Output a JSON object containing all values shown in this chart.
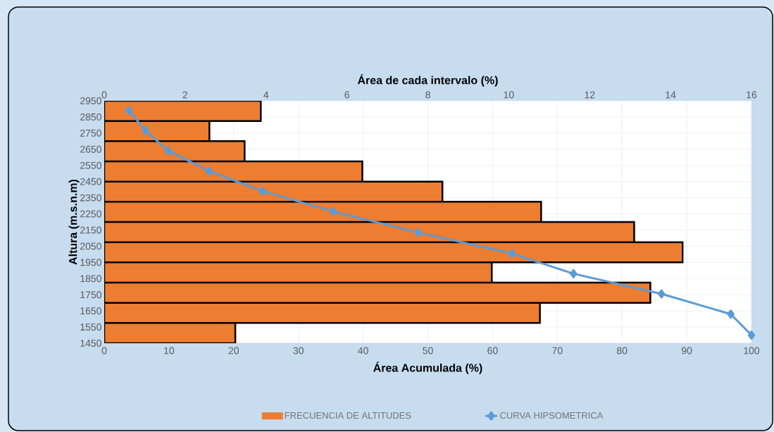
{
  "chart_data": {
    "type": "bar",
    "orientation": "horizontal",
    "xlabel": "Área Acumulada (%)",
    "x2label": "Área de cada intervalo (%)",
    "ylabel": "Altura (m.s.n.m)",
    "xlim": [
      0,
      100
    ],
    "xticks": [
      0,
      10,
      20,
      30,
      40,
      50,
      60,
      70,
      80,
      90,
      100
    ],
    "x2lim": [
      0,
      16
    ],
    "x2ticks": [
      0,
      2,
      4,
      6,
      8,
      10,
      12,
      14,
      16
    ],
    "ylim": [
      1450,
      2950
    ],
    "yticks": [
      1450,
      1550,
      1650,
      1750,
      1850,
      1950,
      2050,
      2150,
      2250,
      2350,
      2450,
      2550,
      2650,
      2750,
      2850,
      2950
    ],
    "grid": true,
    "legend": "bottom",
    "series": [
      {
        "name": "FRECUENCIA DE ALTITUDES",
        "axis": "x2",
        "color": "#ed7d31",
        "x": [
          2887.5,
          2762.5,
          2637.5,
          2512.5,
          2387.5,
          2262.5,
          2137.5,
          2012.5,
          1887.5,
          1762.5,
          1637.5,
          1512.5
        ],
        "values": [
          3.87,
          2.6,
          3.47,
          6.38,
          8.36,
          10.8,
          13.1,
          14.3,
          9.58,
          13.5,
          10.77,
          3.24
        ]
      },
      {
        "name": "CURVA HIPSOMETRICA",
        "type": "line",
        "color": "#5b9bd5",
        "marker": "diamond",
        "line_style": "solid",
        "x": [
          2890,
          2765,
          2640,
          2515,
          2390,
          2265,
          2135,
          2005,
          1880,
          1755,
          1630,
          1500
        ],
        "values": [
          3.8,
          6.4,
          9.9,
          16.2,
          24.5,
          35.4,
          48.5,
          63.0,
          72.5,
          86.1,
          96.8,
          100
        ]
      }
    ]
  }
}
